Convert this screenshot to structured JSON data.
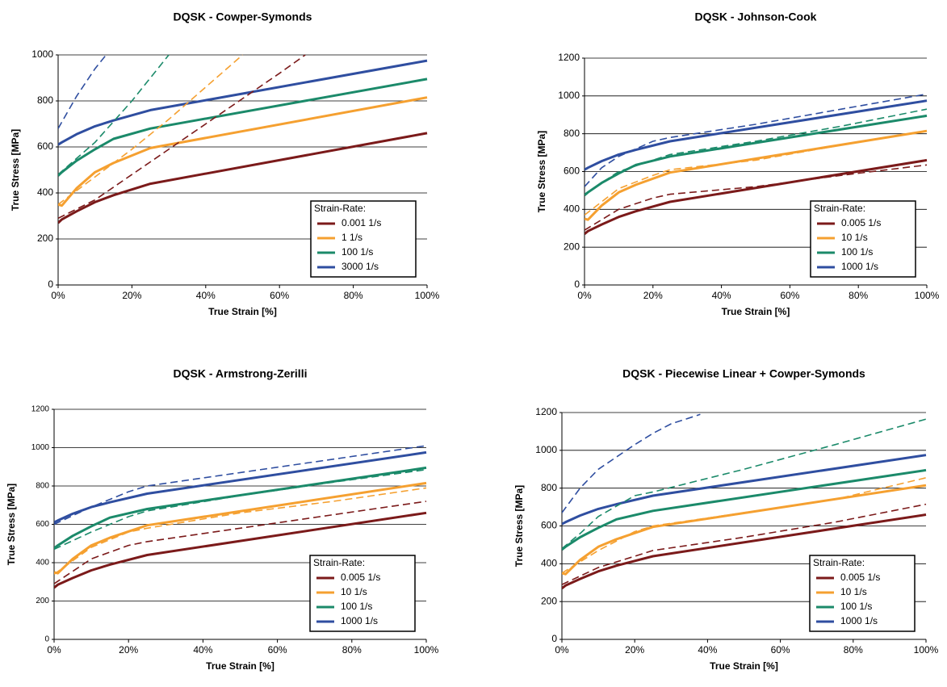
{
  "chart_data": [
    {
      "type": "line",
      "title": "DQSK - Cowper-Symonds",
      "x_label": "True Strain  [%]",
      "y_label": "True Stress  [MPa]",
      "legend_title": "Strain-Rate:",
      "legend": "lower right",
      "grid": true,
      "xlim": [
        0,
        100
      ],
      "xticks": [
        {
          "value": 0,
          "label": "0%"
        },
        {
          "value": 20,
          "label": "20%"
        },
        {
          "value": 40,
          "label": "40%"
        },
        {
          "value": 60,
          "label": "60%"
        },
        {
          "value": 80,
          "label": "80%"
        },
        {
          "value": 100,
          "label": "100%"
        }
      ],
      "ylim": [
        0,
        1000
      ],
      "yticks": [
        0,
        200,
        400,
        600,
        800,
        1000
      ],
      "series": [
        {
          "name": "0.001 1/s",
          "color": "#7b1a1a",
          "x": [
            0,
            1,
            5,
            10,
            15,
            25,
            100
          ],
          "values": [
            270,
            285,
            320,
            360,
            390,
            440,
            660
          ]
        },
        {
          "name": "1 1/s",
          "color": "#f5a030",
          "x": [
            0,
            1,
            5,
            10,
            15,
            25,
            100
          ],
          "values": [
            350,
            345,
            420,
            490,
            530,
            595,
            815
          ]
        },
        {
          "name": "100 1/s",
          "color": "#1b8a6a",
          "x": [
            0,
            1,
            5,
            10,
            15,
            25,
            100
          ],
          "values": [
            475,
            490,
            540,
            590,
            635,
            680,
            895
          ]
        },
        {
          "name": "3000 1/s",
          "color": "#2f4ea0",
          "x": [
            0,
            1,
            5,
            10,
            15,
            25,
            100
          ],
          "values": [
            610,
            620,
            655,
            690,
            715,
            760,
            975
          ]
        },
        {
          "color": "#7b1a1a",
          "dash": true,
          "x": [
            0,
            10,
            20,
            30,
            40,
            50,
            60,
            67
          ],
          "values": [
            290,
            370,
            480,
            590,
            700,
            810,
            920,
            1000
          ]
        },
        {
          "color": "#f5a030",
          "dash": true,
          "x": [
            0,
            10,
            20,
            30,
            40,
            50
          ],
          "values": [
            350,
            470,
            590,
            720,
            860,
            1000
          ]
        },
        {
          "color": "#1b8a6a",
          "dash": true,
          "x": [
            0,
            10,
            20,
            30
          ],
          "values": [
            480,
            620,
            800,
            1000
          ]
        },
        {
          "color": "#2f4ea0",
          "dash": true,
          "x": [
            0,
            5,
            10,
            13
          ],
          "values": [
            680,
            820,
            940,
            1000
          ]
        }
      ]
    },
    {
      "type": "line",
      "title": "DQSK - Johnson-Cook",
      "x_label": "True Strain [%]",
      "y_label": "True Stress [MPa]",
      "legend_title": "Strain-Rate:",
      "legend": "lower right",
      "grid": true,
      "xlim": [
        0,
        100
      ],
      "xticks": [
        {
          "value": 0,
          "label": "0%"
        },
        {
          "value": 20,
          "label": "20%"
        },
        {
          "value": 40,
          "label": "40%"
        },
        {
          "value": 60,
          "label": "60%"
        },
        {
          "value": 80,
          "label": "80%"
        },
        {
          "value": 100,
          "label": "100%"
        }
      ],
      "ylim": [
        0,
        1200
      ],
      "yticks": [
        0,
        200,
        400,
        600,
        800,
        1000,
        1200
      ],
      "series": [
        {
          "name": "0.005 1/s",
          "color": "#7b1a1a",
          "x": [
            0,
            1,
            5,
            10,
            15,
            25,
            100
          ],
          "values": [
            270,
            285,
            320,
            360,
            390,
            440,
            660
          ]
        },
        {
          "name": "10 1/s",
          "color": "#f5a030",
          "x": [
            0,
            1,
            5,
            10,
            15,
            25,
            100
          ],
          "values": [
            350,
            345,
            420,
            490,
            530,
            595,
            815
          ]
        },
        {
          "name": "100 1/s",
          "color": "#1b8a6a",
          "x": [
            0,
            1,
            5,
            10,
            15,
            25,
            100
          ],
          "values": [
            475,
            490,
            540,
            590,
            635,
            680,
            895
          ]
        },
        {
          "name": "1000 1/s",
          "color": "#2f4ea0",
          "x": [
            0,
            1,
            5,
            10,
            15,
            25,
            100
          ],
          "values": [
            610,
            620,
            655,
            690,
            715,
            760,
            975
          ]
        },
        {
          "color": "#7b1a1a",
          "dash": true,
          "x": [
            0,
            10,
            20,
            25,
            50,
            75,
            100
          ],
          "values": [
            290,
            400,
            460,
            480,
            520,
            580,
            635
          ]
        },
        {
          "color": "#f5a030",
          "dash": true,
          "x": [
            0,
            10,
            20,
            25,
            50,
            75,
            100
          ],
          "values": [
            370,
            510,
            580,
            610,
            660,
            740,
            815
          ]
        },
        {
          "color": "#1b8a6a",
          "dash": true,
          "x": [
            0,
            10,
            20,
            25,
            50,
            75,
            100
          ],
          "values": [
            480,
            600,
            660,
            690,
            760,
            840,
            930
          ]
        },
        {
          "color": "#2f4ea0",
          "dash": true,
          "x": [
            0,
            5,
            10,
            20,
            25,
            50,
            75,
            100
          ],
          "values": [
            520,
            620,
            680,
            760,
            780,
            850,
            930,
            1010
          ]
        }
      ]
    },
    {
      "type": "line",
      "title": "DQSK - Armstrong-Zerilli",
      "x_label": "True Strain [%]",
      "y_label": "True Stress [MPa]",
      "legend_title": "Strain-Rate:",
      "legend": "lower right",
      "grid": true,
      "xlim": [
        0,
        100
      ],
      "xticks": [
        {
          "value": 0,
          "label": "0%"
        },
        {
          "value": 20,
          "label": "20%"
        },
        {
          "value": 40,
          "label": "40%"
        },
        {
          "value": 60,
          "label": "60%"
        },
        {
          "value": 80,
          "label": "80%"
        },
        {
          "value": 100,
          "label": "100%"
        }
      ],
      "ylim": [
        0,
        1200
      ],
      "yticks": [
        0,
        200,
        400,
        600,
        800,
        1000,
        1200
      ],
      "series": [
        {
          "name": "0.005 1/s",
          "color": "#7b1a1a",
          "x": [
            0,
            1,
            5,
            10,
            15,
            25,
            100
          ],
          "values": [
            270,
            285,
            320,
            360,
            390,
            440,
            660
          ]
        },
        {
          "name": "10 1/s",
          "color": "#f5a030",
          "x": [
            0,
            1,
            5,
            10,
            15,
            25,
            100
          ],
          "values": [
            350,
            345,
            420,
            490,
            530,
            595,
            815
          ]
        },
        {
          "name": "100 1/s",
          "color": "#1b8a6a",
          "x": [
            0,
            1,
            5,
            10,
            15,
            25,
            100
          ],
          "values": [
            475,
            490,
            540,
            590,
            635,
            680,
            895
          ]
        },
        {
          "name": "1000 1/s",
          "color": "#2f4ea0",
          "x": [
            0,
            1,
            5,
            10,
            15,
            25,
            100
          ],
          "values": [
            610,
            620,
            655,
            690,
            715,
            760,
            975
          ]
        },
        {
          "color": "#7b1a1a",
          "dash": true,
          "x": [
            0,
            10,
            20,
            25,
            50,
            75,
            100
          ],
          "values": [
            290,
            420,
            490,
            510,
            580,
            650,
            720
          ]
        },
        {
          "color": "#f5a030",
          "dash": true,
          "x": [
            0,
            10,
            20,
            25,
            50,
            75,
            100
          ],
          "values": [
            340,
            480,
            560,
            580,
            660,
            720,
            790
          ]
        },
        {
          "color": "#1b8a6a",
          "dash": true,
          "x": [
            0,
            10,
            20,
            25,
            50,
            75,
            100
          ],
          "values": [
            470,
            560,
            640,
            670,
            750,
            820,
            885
          ]
        },
        {
          "color": "#2f4ea0",
          "dash": true,
          "x": [
            0,
            10,
            20,
            25,
            50,
            75,
            100
          ],
          "values": [
            600,
            690,
            770,
            800,
            870,
            940,
            1010
          ]
        }
      ]
    },
    {
      "type": "line",
      "title": "DQSK - Piecewise Linear + Cowper-Symonds",
      "x_label": "True Strain [%]",
      "y_label": "True Stress [MPa]",
      "legend_title": "Strain-Rate:",
      "legend": "lower right",
      "grid": true,
      "xlim": [
        0,
        100
      ],
      "xticks": [
        {
          "value": 0,
          "label": "0%"
        },
        {
          "value": 20,
          "label": "20%"
        },
        {
          "value": 40,
          "label": "40%"
        },
        {
          "value": 60,
          "label": "60%"
        },
        {
          "value": 80,
          "label": "80%"
        },
        {
          "value": 100,
          "label": "100%"
        }
      ],
      "ylim": [
        0,
        1200
      ],
      "yticks": [
        0,
        200,
        400,
        600,
        800,
        1000,
        1200
      ],
      "series": [
        {
          "name": "0.005 1/s",
          "color": "#7b1a1a",
          "x": [
            0,
            1,
            5,
            10,
            15,
            25,
            100
          ],
          "values": [
            270,
            285,
            320,
            360,
            390,
            440,
            660
          ]
        },
        {
          "name": "10 1/s",
          "color": "#f5a030",
          "x": [
            0,
            1,
            5,
            10,
            15,
            25,
            100
          ],
          "values": [
            350,
            345,
            420,
            490,
            530,
            595,
            815
          ]
        },
        {
          "name": "100 1/s",
          "color": "#1b8a6a",
          "x": [
            0,
            1,
            5,
            10,
            15,
            25,
            100
          ],
          "values": [
            475,
            490,
            540,
            590,
            635,
            680,
            895
          ]
        },
        {
          "name": "1000 1/s",
          "color": "#2f4ea0",
          "x": [
            0,
            1,
            5,
            10,
            15,
            25,
            100
          ],
          "values": [
            610,
            620,
            655,
            690,
            715,
            760,
            975
          ]
        },
        {
          "color": "#7b1a1a",
          "dash": true,
          "x": [
            0,
            10,
            20,
            25,
            50,
            75,
            100
          ],
          "values": [
            290,
            380,
            440,
            470,
            540,
            620,
            715
          ]
        },
        {
          "color": "#f5a030",
          "dash": true,
          "x": [
            0,
            10,
            20,
            25,
            50,
            75,
            100
          ],
          "values": [
            350,
            470,
            570,
            600,
            670,
            740,
            855
          ]
        },
        {
          "color": "#1b8a6a",
          "dash": true,
          "x": [
            0,
            5,
            10,
            20,
            25,
            50,
            75,
            100
          ],
          "values": [
            480,
            560,
            650,
            760,
            780,
            900,
            1030,
            1165
          ]
        },
        {
          "color": "#2f4ea0",
          "dash": true,
          "x": [
            0,
            5,
            10,
            20,
            25,
            30,
            38
          ],
          "values": [
            670,
            800,
            900,
            1030,
            1090,
            1140,
            1190
          ]
        }
      ]
    }
  ]
}
